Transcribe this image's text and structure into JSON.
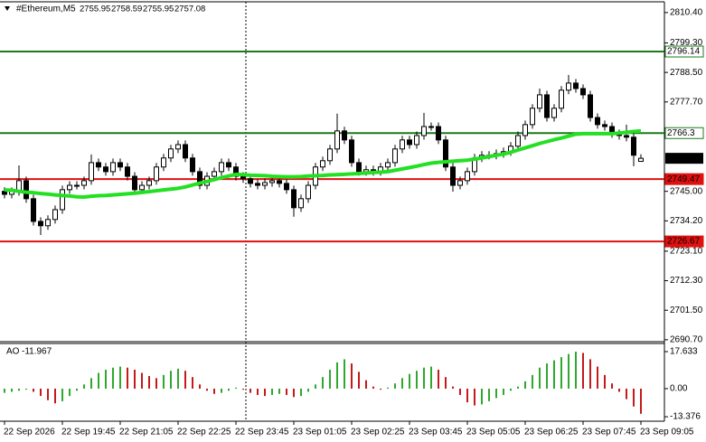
{
  "chart_data": {
    "type": "candlestick",
    "title": "#Ethereum,M5",
    "categories": [
      "22 Sep 2026",
      null,
      null,
      null,
      null,
      null,
      null,
      null,
      "22 Sep 19:45",
      null,
      null,
      null,
      null,
      null,
      null,
      null,
      "22 Sep 21:05",
      null,
      null,
      null,
      null,
      null,
      null,
      null,
      "22 Sep 22:25",
      null,
      null,
      null,
      null,
      null,
      null,
      null,
      "22 Sep 23:45",
      null,
      null,
      null,
      null,
      null,
      null,
      null,
      "23 Sep 01:05",
      null,
      null,
      null,
      null,
      null,
      null,
      null,
      "23 Sep 02:25",
      null,
      null,
      null,
      null,
      null,
      null,
      null,
      "23 Sep 03:45",
      null,
      null,
      null,
      null,
      null,
      null,
      null,
      "23 Sep 05:05",
      null,
      null,
      null,
      null,
      null,
      null,
      null,
      "23 Sep 06:25",
      null,
      null,
      null,
      null,
      null,
      null,
      null,
      "23 Sep 07:45",
      null,
      null,
      null,
      null,
      null,
      null,
      null,
      "23 Sep 09:05"
    ],
    "open": [
      2745.0,
      2743.9,
      2744.9,
      2748.9,
      2742.3,
      2734.0,
      2732.4,
      2734.7,
      2738.3,
      2745.6,
      2747.2,
      2747.2,
      2748.9,
      2755.5,
      2753.9,
      2752.2,
      2755.5,
      2753.9,
      2750.5,
      2745.6,
      2747.2,
      2748.9,
      2753.9,
      2757.2,
      2760.5,
      2762.1,
      2757.2,
      2752.2,
      2747.2,
      2750.5,
      2752.2,
      2755.5,
      2753.9,
      2750.5,
      2749.6,
      2747.9,
      2747.2,
      2748.2,
      2748.9,
      2747.9,
      2745.6,
      2739.0,
      2742.3,
      2747.2,
      2753.9,
      2756.2,
      2760.5,
      2767.1,
      2763.8,
      2755.5,
      2752.2,
      2752.9,
      2752.2,
      2753.9,
      2755.5,
      2760.5,
      2763.8,
      2762.1,
      2765.4,
      2768.7,
      2768.7,
      2763.8,
      2753.9,
      2747.2,
      2748.9,
      2752.2,
      2757.2,
      2758.2,
      2758.2,
      2758.8,
      2759.5,
      2761.5,
      2765.4,
      2769.4,
      2775.4,
      2780.3,
      2772.0,
      2775.4,
      2782.0,
      2784.6,
      2782.6,
      2780.3,
      2772.0,
      2769.4,
      2768.7,
      2766.1,
      2765.4,
      2764.8,
      2755.95
    ],
    "high": [
      2746.5,
      2746.4,
      2754.5,
      2750.4,
      2743.8,
      2735.5,
      2736.2,
      2739.8,
      2747.1,
      2748.7,
      2748.7,
      2750.4,
      2758.5,
      2757.0,
      2755.4,
      2757.0,
      2757.0,
      2755.4,
      2752.0,
      2748.7,
      2750.4,
      2755.4,
      2758.7,
      2762.0,
      2763.6,
      2763.6,
      2758.7,
      2753.7,
      2752.0,
      2753.7,
      2757.0,
      2757.0,
      2755.4,
      2752.0,
      2751.1,
      2749.4,
      2749.7,
      2750.4,
      2750.4,
      2749.4,
      2747.1,
      2743.8,
      2748.7,
      2755.4,
      2757.7,
      2762.0,
      2773.4,
      2768.6,
      2765.3,
      2757.0,
      2754.4,
      2754.4,
      2755.4,
      2757.0,
      2762.0,
      2765.3,
      2765.3,
      2766.9,
      2773.7,
      2770.2,
      2770.2,
      2765.3,
      2755.4,
      2750.4,
      2753.7,
      2758.7,
      2759.7,
      2759.7,
      2760.3,
      2761.0,
      2763.0,
      2766.9,
      2770.9,
      2776.9,
      2782.6,
      2781.8,
      2776.9,
      2783.5,
      2787.6,
      2786.1,
      2784.1,
      2781.8,
      2773.5,
      2770.9,
      2770.2,
      2767.6,
      2769.4,
      2766.3,
      2758.59
    ],
    "low": [
      2742.4,
      2742.4,
      2743.4,
      2740.8,
      2732.5,
      2729.0,
      2730.9,
      2733.2,
      2736.8,
      2744.1,
      2745.7,
      2745.7,
      2747.4,
      2752.4,
      2750.7,
      2750.7,
      2752.4,
      2749.0,
      2744.1,
      2744.1,
      2745.7,
      2747.4,
      2752.4,
      2755.7,
      2759.0,
      2755.7,
      2750.7,
      2745.7,
      2745.7,
      2749.0,
      2750.7,
      2752.4,
      2749.0,
      2748.1,
      2746.4,
      2745.7,
      2745.7,
      2746.7,
      2746.4,
      2744.1,
      2735.7,
      2737.5,
      2740.8,
      2745.7,
      2752.4,
      2754.7,
      2759.0,
      2762.3,
      2754.0,
      2750.7,
      2750.7,
      2750.7,
      2750.7,
      2752.4,
      2754.0,
      2759.0,
      2760.6,
      2760.6,
      2763.9,
      2767.2,
      2762.3,
      2752.4,
      2744.9,
      2745.7,
      2747.4,
      2750.7,
      2755.7,
      2756.7,
      2756.7,
      2757.3,
      2758.0,
      2760.0,
      2763.9,
      2767.9,
      2773.9,
      2770.5,
      2770.5,
      2773.9,
      2780.5,
      2781.1,
      2778.8,
      2770.5,
      2767.9,
      2767.2,
      2764.6,
      2763.9,
      2763.3,
      2754.2,
      2755.95
    ],
    "close": [
      2743.9,
      2744.9,
      2748.9,
      2742.3,
      2734.0,
      2732.4,
      2734.7,
      2738.3,
      2745.6,
      2747.2,
      2747.2,
      2748.9,
      2755.5,
      2753.9,
      2752.2,
      2755.5,
      2753.9,
      2750.5,
      2745.6,
      2747.2,
      2748.9,
      2753.9,
      2757.2,
      2760.5,
      2762.1,
      2757.2,
      2752.2,
      2747.2,
      2750.5,
      2752.2,
      2755.5,
      2753.9,
      2750.5,
      2749.6,
      2747.9,
      2747.2,
      2748.2,
      2748.9,
      2747.9,
      2745.6,
      2739.0,
      2742.3,
      2747.2,
      2753.9,
      2756.2,
      2760.5,
      2767.1,
      2763.8,
      2755.5,
      2752.2,
      2752.9,
      2752.2,
      2753.9,
      2755.5,
      2760.5,
      2763.8,
      2762.1,
      2765.4,
      2768.7,
      2768.7,
      2763.8,
      2753.9,
      2747.2,
      2748.9,
      2752.2,
      2757.2,
      2758.2,
      2758.2,
      2758.8,
      2759.5,
      2761.5,
      2765.4,
      2769.4,
      2775.4,
      2780.3,
      2772.0,
      2775.4,
      2782.0,
      2784.6,
      2782.6,
      2780.3,
      2772.0,
      2769.4,
      2768.7,
      2766.1,
      2765.4,
      2764.8,
      2758.2,
      2757.08
    ],
    "up_color": "#ffffff",
    "down_color": "#000000",
    "ylim": [
      2690.0,
      2814.0
    ],
    "yticks": [
      {
        "value": 2810.4,
        "label": "2810.40"
      },
      {
        "value": 2799.3,
        "label": "2799.30"
      },
      {
        "value": 2788.5,
        "label": "2788.50"
      },
      {
        "value": 2777.7,
        "label": "2777.70"
      },
      {
        "value": 2745.0,
        "label": "2745.00"
      },
      {
        "value": 2734.2,
        "label": "2734.20"
      },
      {
        "value": 2723.1,
        "label": "2723.10"
      },
      {
        "value": 2712.3,
        "label": "2712.30"
      },
      {
        "value": 2701.5,
        "label": "2701.50"
      },
      {
        "value": 2690.7,
        "label": "2690.70"
      }
    ],
    "ma": {
      "color": "#22e022",
      "values": [
        2745.5,
        2745.4,
        2745.0,
        2744.7,
        2744.5,
        2744.2,
        2744.0,
        2743.7,
        2743.5,
        2743.3,
        2743.0,
        2742.9,
        2743.2,
        2743.4,
        2743.5,
        2743.7,
        2743.9,
        2744.1,
        2744.3,
        2744.6,
        2744.9,
        2745.2,
        2745.5,
        2745.8,
        2746.1,
        2746.6,
        2747.3,
        2748.0,
        2748.6,
        2749.3,
        2750.0,
        2750.6,
        2751.2,
        2751.1,
        2750.9,
        2750.8,
        2750.7,
        2750.5,
        2750.4,
        2750.3,
        2750.3,
        2750.4,
        2750.6,
        2750.7,
        2750.8,
        2751.0,
        2751.1,
        2751.2,
        2751.4,
        2751.5,
        2751.7,
        2751.9,
        2752.0,
        2752.2,
        2752.7,
        2753.2,
        2753.7,
        2754.2,
        2754.8,
        2755.3,
        2755.6,
        2755.8,
        2756.0,
        2756.2,
        2756.4,
        2756.8,
        2757.2,
        2757.7,
        2758.2,
        2758.6,
        2759.3,
        2760.1,
        2760.9,
        2761.7,
        2762.5,
        2763.2,
        2763.9,
        2764.5,
        2765.2,
        2765.9,
        2766.1,
        2766.1,
        2766.1,
        2766.1,
        2766.1,
        2766.3,
        2766.6,
        2766.9,
        2767.1
      ]
    },
    "levels": [
      {
        "value": 2796.14,
        "color": "#1c7a1c",
        "label_fill": "#ffffff",
        "label_text": "#000000"
      },
      {
        "value": 2766.3,
        "color": "#1c7a1c",
        "label_fill": "#ffffff",
        "label_text": "#000000"
      },
      {
        "value": 2749.47,
        "color": "#e01010",
        "label_fill": "#e01010",
        "label_text": "#ffffff"
      },
      {
        "value": 2726.67,
        "color": "#e01010",
        "label_fill": "#e01010",
        "label_text": "#ffffff"
      }
    ],
    "indicator": {
      "type": "bar",
      "title": "AO",
      "up_color": "#2fa82f",
      "down_color": "#c41a1a",
      "values": [
        -2.0,
        -1.5,
        -1.0,
        -0.5,
        -1.5,
        -3.5,
        -5.5,
        -7.0,
        -6.0,
        -3.5,
        -1.0,
        2.0,
        5.0,
        7.5,
        9.0,
        10.0,
        10.5,
        10.0,
        9.0,
        7.5,
        6.0,
        5.0,
        6.5,
        8.5,
        9.5,
        8.5,
        5.5,
        2.0,
        -1.0,
        -2.5,
        -2.0,
        -1.0,
        0.5,
        -0.5,
        -2.0,
        -3.0,
        -3.5,
        -3.0,
        -2.5,
        -3.0,
        -4.0,
        -3.5,
        -1.5,
        2.0,
        5.5,
        9.0,
        12.5,
        14.0,
        12.0,
        8.0,
        4.0,
        1.0,
        -0.5,
        0.5,
        2.5,
        5.0,
        7.0,
        8.5,
        10.0,
        10.5,
        9.0,
        5.5,
        1.0,
        -3.0,
        -6.5,
        -8.0,
        -7.5,
        -6.0,
        -4.5,
        -3.0,
        -1.0,
        1.0,
        3.5,
        6.5,
        10.0,
        12.0,
        13.5,
        15.0,
        16.5,
        17.6,
        17.0,
        14.0,
        10.5,
        6.5,
        2.5,
        -1.5,
        -5.0,
        -8.5,
        -11.967
      ],
      "ylim": [
        -15.5,
        21.5
      ],
      "yticks": [
        17.633,
        {
          "value": 0,
          "label": "0.00"
        },
        -13.376
      ]
    }
  }
}
